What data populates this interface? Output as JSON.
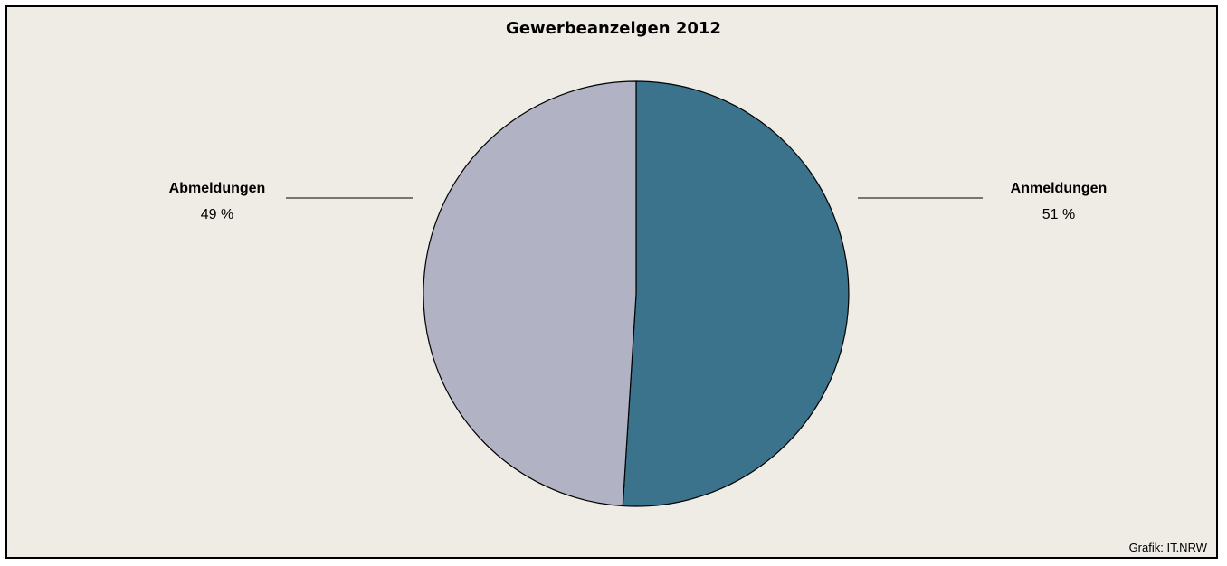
{
  "chart_data": {
    "type": "pie",
    "title": "Gewerbeanzeigen 2012",
    "slices": [
      {
        "label": "Anmeldungen",
        "value": 51,
        "value_text": "51 %",
        "color": "#3b728c"
      },
      {
        "label": "Abmeldungen",
        "value": 49,
        "value_text": "49 %",
        "color": "#b1b3c5"
      }
    ],
    "background": "#efebe5"
  },
  "source": "Grafik: IT.NRW"
}
